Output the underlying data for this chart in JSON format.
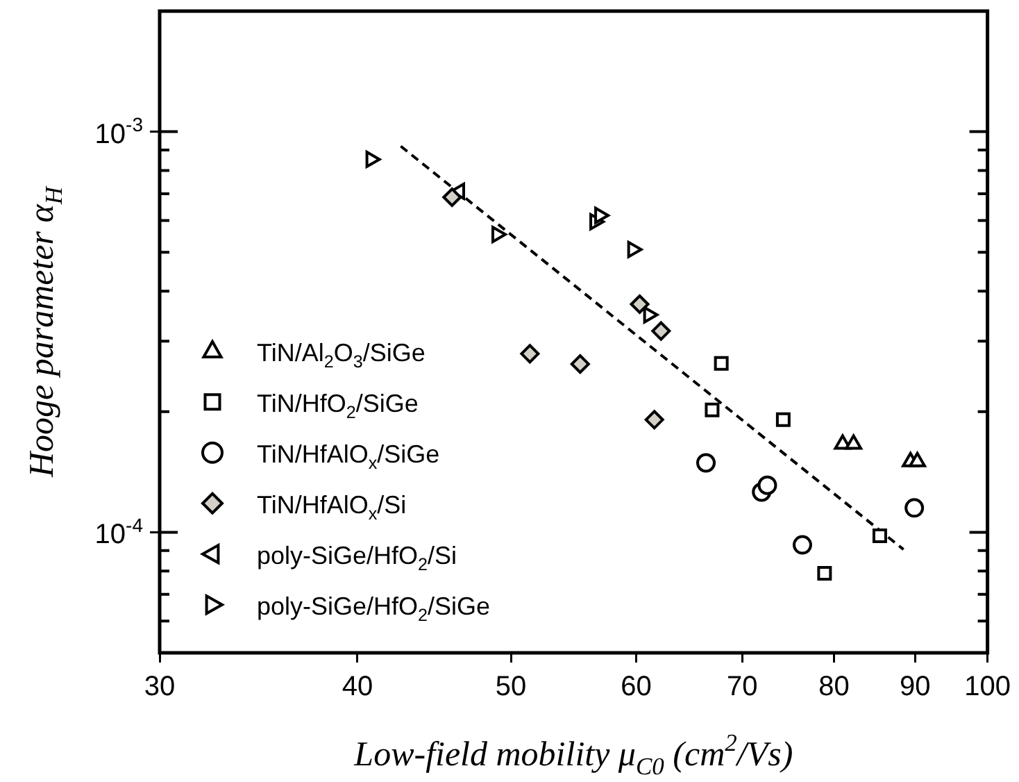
{
  "chart_data": {
    "type": "scatter",
    "xlabel": "Low-field mobility μ$_{C0}$ (cm$^{2}$/Vs)",
    "ylabel": "Hooge parameter α$_{H}$",
    "log": "xy",
    "xlim": [
      30,
      100
    ],
    "ylim": [
      5e-05,
      0.002
    ],
    "xticks": [
      30,
      40,
      50,
      60,
      70,
      80,
      90,
      100
    ],
    "yticks": [
      {
        "value": 6e-05,
        "label": null
      },
      {
        "value": 7e-05,
        "label": null
      },
      {
        "value": 8e-05,
        "label": null
      },
      {
        "value": 9e-05,
        "label": null
      },
      {
        "value": 0.0001,
        "label": "10$^{-4}$"
      },
      {
        "value": 0.0002,
        "label": null
      },
      {
        "value": 0.0003,
        "label": null
      },
      {
        "value": 0.0004,
        "label": null
      },
      {
        "value": 0.0005,
        "label": null
      },
      {
        "value": 0.0006,
        "label": null
      },
      {
        "value": 0.0007,
        "label": null
      },
      {
        "value": 0.0008,
        "label": null
      },
      {
        "value": 0.0009,
        "label": null
      },
      {
        "value": 0.001,
        "label": "10$^{-3}$"
      }
    ],
    "grid": false,
    "legend": "left",
    "series": [
      {
        "name": "TiN/Al$_{2}$O$_{3}$/SiGe",
        "color": "#000000",
        "marker": "triangle",
        "x": [
          81.0,
          82.3,
          89.4,
          90.3
        ],
        "values": [
          0.000166,
          0.000166,
          0.00015,
          0.00015
        ]
      },
      {
        "name": "TiN/HfO$_{2}$/SiGe",
        "color": "#000000",
        "marker": "square",
        "x": [
          67.9,
          67.0,
          74.3,
          85.5,
          78.9
        ],
        "values": [
          0.000264,
          0.000202,
          0.000191,
          9.8e-05,
          7.9e-05
        ]
      },
      {
        "name": "TiN/HfAlO$_{x}$/SiGe",
        "color": "#000000",
        "marker": "circle",
        "x": [
          66.4,
          72.0,
          72.6,
          76.4,
          89.9
        ],
        "values": [
          0.000149,
          0.000126,
          0.000131,
          9.3e-05,
          0.000115
        ]
      },
      {
        "name": "TiN/HfAlO$_{x}$/Si",
        "color": "#d4d0c8",
        "marker": "diamond",
        "x": [
          60.3,
          62.2,
          51.4,
          55.3,
          61.6,
          45.9
        ],
        "values": [
          0.000371,
          0.000318,
          0.000279,
          0.000263,
          0.000191,
          0.000686
        ]
      },
      {
        "name": "poly-SiGe/HfO$_{2}$/Si",
        "color": "#000000",
        "marker": "triangle-left",
        "x": [
          46.4
        ],
        "values": [
          0.00071
        ]
      },
      {
        "name": "poly-SiGe/HfO$_{2}$/SiGe",
        "color": "#000000",
        "marker": "triangle-right",
        "x": [
          40.8,
          49.0,
          56.5,
          56.9,
          59.7,
          61.1
        ],
        "values": [
          0.000853,
          0.000554,
          0.000596,
          0.000618,
          0.000508,
          0.000349
        ]
      },
      {
        "type": "line",
        "color": "#000000",
        "marker": "none",
        "line_style": "dashed",
        "x": [
          42.6,
          88.5
        ],
        "values": [
          0.00092,
          9.06e-05
        ]
      }
    ]
  }
}
